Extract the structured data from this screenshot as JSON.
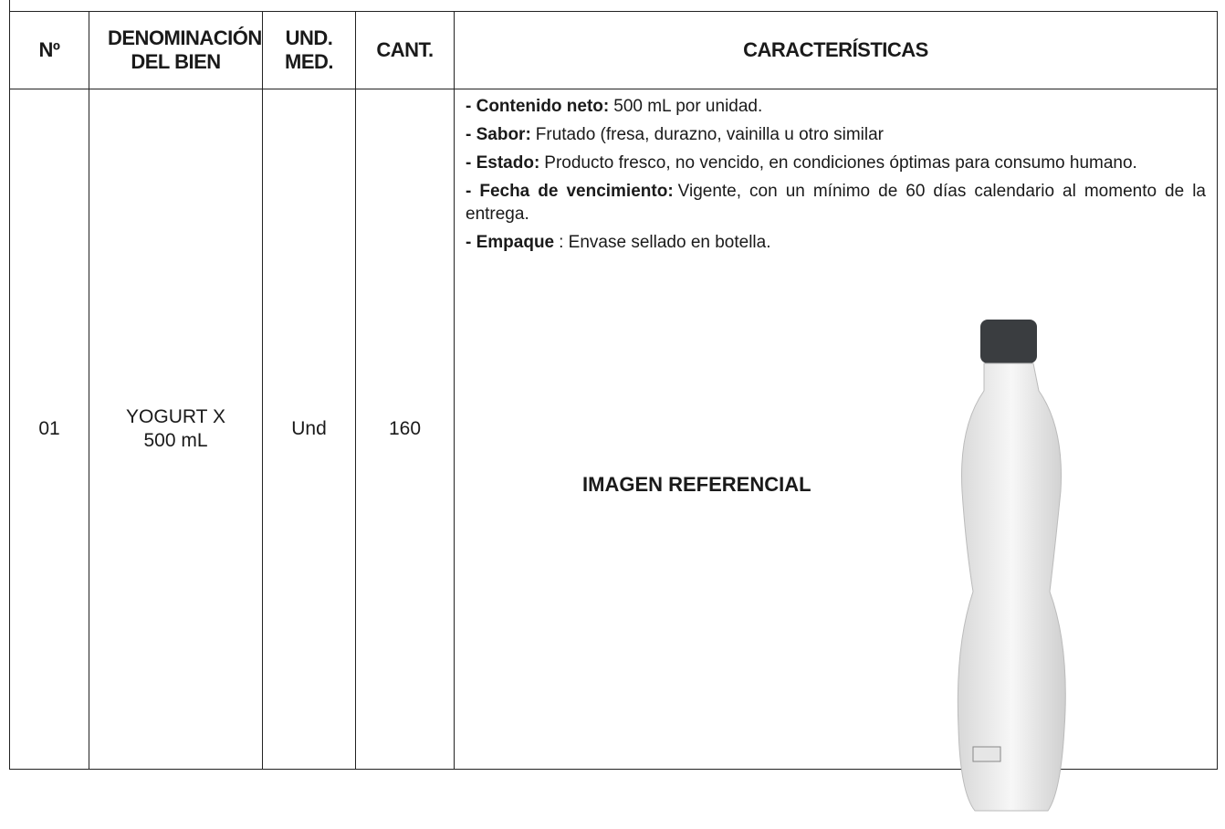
{
  "table": {
    "headers": [
      "Nº",
      "DENOMINACIÓN DEL BIEN",
      "UND. MED.",
      "CANT.",
      "CARACTERÍSTICAS"
    ],
    "rows": [
      {
        "no": "01",
        "denominacion": "YOGURT X 500 mL",
        "unidad": "Und",
        "cantidad": "160",
        "caracteristicas": [
          {
            "label": "- Contenido neto:",
            "text": "500 mL por unidad."
          },
          {
            "label": "- Sabor:",
            "text": "Frutado (fresa, durazno, vainilla u otro similar"
          },
          {
            "label": "- Estado:",
            "text": "Producto fresco, no vencido, en condiciones óptimas para consumo humano."
          },
          {
            "label": "- Fecha de vencimiento:",
            "text": "Vigente, con un mínimo de 60 días calendario al momento de la entrega."
          },
          {
            "label": "- Empaque",
            "text": ": Envase sellado en botella."
          }
        ],
        "image_caption": "IMAGEN REFERENCIAL"
      }
    ]
  }
}
